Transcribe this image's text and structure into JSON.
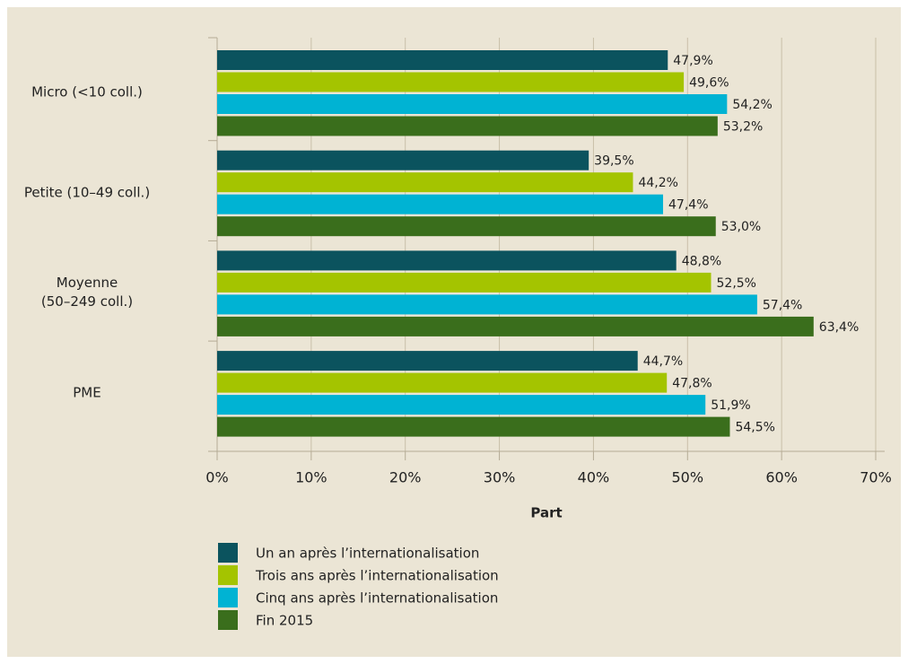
{
  "chart_data": {
    "type": "hbar",
    "xlabel": "Part",
    "categories": [
      "Micro (<10 coll.)",
      "Petite (10–49 coll.)",
      "Moyenne\n(50–249 coll.)",
      "PME"
    ],
    "series": [
      {
        "name": "Un an après l’internationalisation",
        "color": "#0b535e",
        "values": [
          47.9,
          39.5,
          48.8,
          44.7
        ],
        "value_labels": [
          "47,9%",
          "39,5%",
          "48,8%",
          "44,7%"
        ]
      },
      {
        "name": "Trois ans après l’internationalisation",
        "color": "#a4c400",
        "values": [
          49.6,
          44.2,
          52.5,
          47.8
        ],
        "value_labels": [
          "49,6%",
          "44,2%",
          "52,5%",
          "47,8%"
        ]
      },
      {
        "name": "Cinq ans après l’internationalisation",
        "color": "#00b3d3",
        "values": [
          54.2,
          47.4,
          57.4,
          51.9
        ],
        "value_labels": [
          "54,2%",
          "47,4%",
          "57,4%",
          "51,9%"
        ]
      },
      {
        "name": "Fin 2015",
        "color": "#3a6e1c",
        "values": [
          53.2,
          53.0,
          63.4,
          54.5
        ],
        "value_labels": [
          "53,2%",
          "53,0%",
          "63,4%",
          "54,5%"
        ]
      }
    ],
    "xlim": [
      0,
      70
    ],
    "xticks": [
      {
        "value": 0,
        "label": "0%"
      },
      {
        "value": 10,
        "label": "10%"
      },
      {
        "value": 20,
        "label": "20%"
      },
      {
        "value": 30,
        "label": "30%"
      },
      {
        "value": 40,
        "label": "40%"
      },
      {
        "value": 50,
        "label": "50%"
      },
      {
        "value": 60,
        "label": "60%"
      },
      {
        "value": 70,
        "label": "70%"
      }
    ],
    "grid": true
  }
}
